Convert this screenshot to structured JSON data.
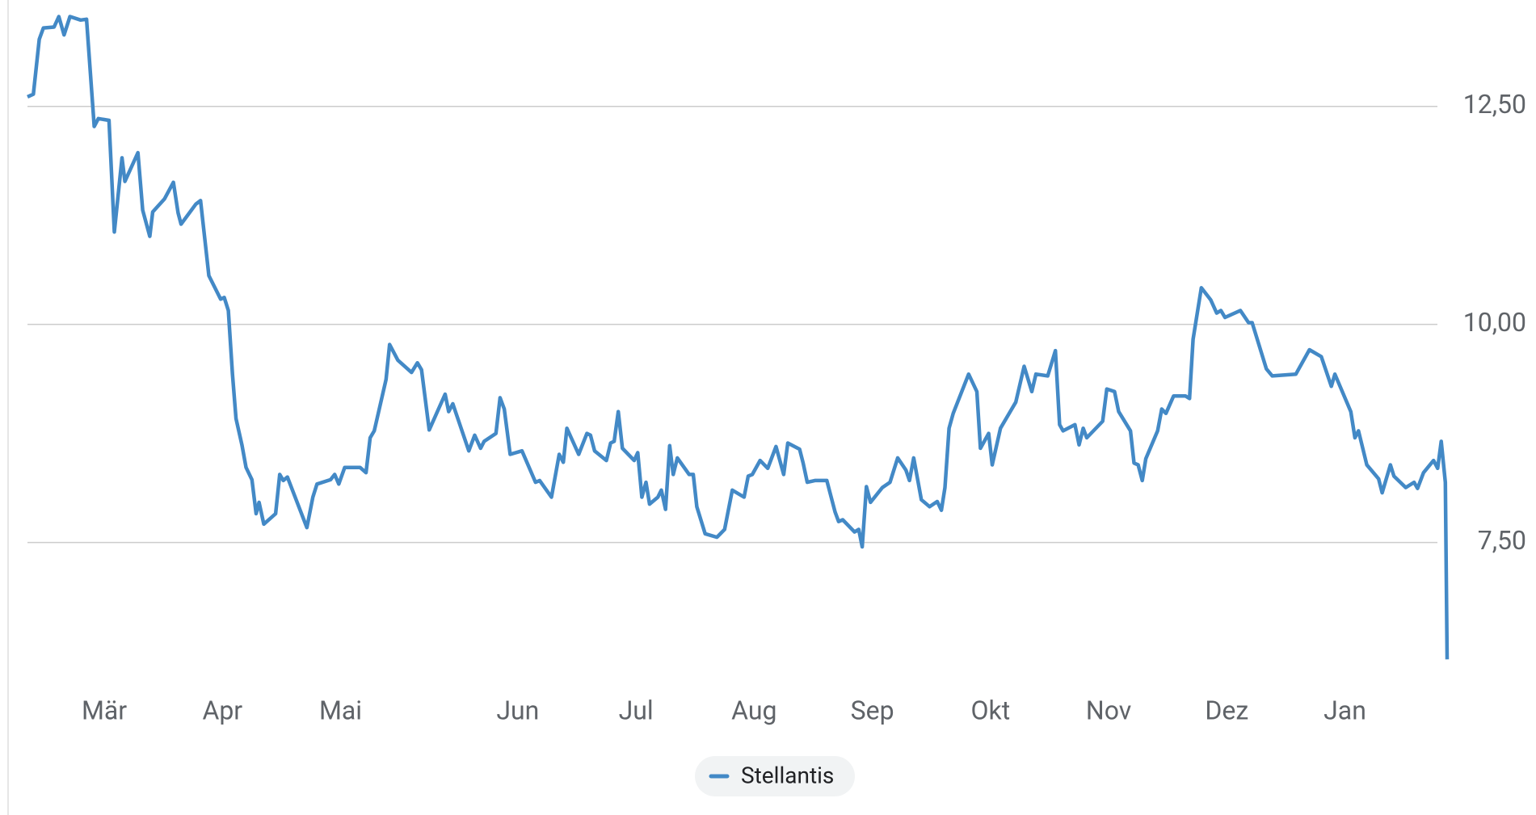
{
  "chart_data": {
    "type": "line",
    "x": [
      0,
      1,
      2,
      2.7,
      4.5,
      5.3,
      6.2,
      7.2,
      9,
      10,
      11.3,
      12,
      13.8,
      14.7,
      16,
      16.5,
      18.7,
      19.5,
      20.7,
      21.2,
      23.2,
      24.7,
      25.5,
      26,
      28.5,
      29.3,
      30.7,
      32.7,
      33.3,
      34,
      34.7,
      35.3,
      36.3,
      37,
      38,
      38.7,
      39.2,
      40,
      42,
      42.7,
      43.3,
      44,
      47.3,
      48.3,
      49,
      51.3,
      52,
      52.7,
      53.7,
      56.3,
      57.3,
      58,
      58.7,
      60.7,
      61.3,
      62.7,
      65,
      66,
      66.7,
      68,
      70.7,
      71.3,
      72,
      74.7,
      75.7,
      76.7,
      77.3,
      79.3,
      80,
      80.7,
      81.7,
      83.7,
      86,
      86.7,
      88.7,
      90,
      90.7,
      91.3,
      93.3,
      94.7,
      95.3,
      96,
      98,
      98.7,
      99.3,
      100,
      100.7,
      102.7,
      103.3,
      104,
      104.7,
      105.3,
      106.7,
      107.3,
      108,
      108.7,
      109.3,
      110,
      112,
      112.7,
      113.3,
      114.7,
      116.7,
      118,
      119.3,
      121.3,
      122,
      122.7,
      124,
      125.3,
      126.7,
      128,
      128.7,
      130.7,
      131.3,
      132,
      133.3,
      135.3,
      136.7,
      137.3,
      138,
      140,
      140.7,
      141.3,
      142,
      142.7,
      144.7,
      146,
      147.3,
      148.7,
      149.3,
      150,
      151.3,
      152.7,
      154,
      154.7,
      155.3,
      156,
      156.7,
      159.3,
      160.7,
      161.3,
      162.7,
      163.3,
      164.7,
      167.3,
      168.7,
      170,
      170.7,
      172.7,
      174,
      174.7,
      175.3,
      177.3,
      178,
      178.7,
      179.3,
      182,
      182.7,
      184,
      184.7,
      186.7,
      187.3,
      188,
      188.7,
      189.3,
      191.3,
      192,
      192.7,
      194,
      196,
      196.7,
      197.3,
      198.7,
      200.3,
      201.3,
      202,
      202.7,
      205.3,
      206.7,
      207.3,
      209.7,
      210.7,
      214.7,
      217,
      219,
      220.7,
      221.3,
      224,
      224.7,
      225.3,
      226.7,
      228.7,
      229.3,
      230.7,
      231.3,
      233.3,
      234.7,
      235.3,
      236.3,
      238,
      238.7,
      239.3,
      240,
      240.3
    ],
    "series": [
      {
        "name": "Stellantis",
        "color": "#4389c6",
        "values": [
          12.61,
          12.64,
          13.27,
          13.4,
          13.41,
          13.53,
          13.32,
          13.53,
          13.49,
          13.5,
          12.27,
          12.36,
          12.34,
          11.06,
          11.91,
          11.64,
          11.97,
          11.31,
          11.01,
          11.29,
          11.44,
          11.63,
          11.28,
          11.15,
          11.38,
          11.42,
          10.56,
          10.29,
          10.31,
          10.16,
          9.43,
          8.92,
          8.62,
          8.36,
          8.22,
          7.83,
          7.96,
          7.71,
          7.83,
          8.28,
          8.21,
          8.25,
          7.67,
          8.02,
          8.17,
          8.22,
          8.28,
          8.17,
          8.36,
          8.36,
          8.3,
          8.7,
          8.78,
          9.37,
          9.77,
          9.59,
          9.45,
          9.56,
          9.48,
          8.79,
          9.2,
          9.0,
          9.09,
          8.55,
          8.73,
          8.58,
          8.66,
          8.75,
          9.16,
          9.03,
          8.51,
          8.55,
          8.19,
          8.21,
          8.02,
          8.51,
          8.42,
          8.81,
          8.51,
          8.75,
          8.73,
          8.55,
          8.44,
          8.64,
          8.66,
          9.0,
          8.58,
          8.44,
          8.53,
          8.02,
          8.19,
          7.94,
          8.02,
          8.1,
          7.88,
          8.61,
          8.28,
          8.47,
          8.28,
          8.28,
          7.91,
          7.6,
          7.56,
          7.65,
          8.1,
          8.02,
          8.26,
          8.28,
          8.44,
          8.35,
          8.6,
          8.28,
          8.64,
          8.57,
          8.41,
          8.19,
          8.21,
          8.21,
          7.85,
          7.74,
          7.76,
          7.62,
          7.65,
          7.45,
          8.14,
          7.96,
          8.13,
          8.19,
          8.47,
          8.33,
          8.21,
          8.47,
          7.99,
          7.91,
          7.97,
          7.87,
          8.13,
          8.81,
          8.98,
          9.43,
          9.23,
          8.58,
          8.75,
          8.39,
          8.81,
          9.11,
          9.52,
          9.23,
          9.43,
          9.41,
          9.7,
          8.85,
          8.78,
          8.85,
          8.62,
          8.81,
          8.7,
          8.89,
          9.26,
          9.23,
          9.0,
          8.78,
          8.41,
          8.39,
          8.21,
          8.46,
          8.78,
          9.03,
          8.98,
          9.18,
          9.18,
          9.15,
          9.83,
          10.42,
          10.28,
          10.13,
          10.16,
          10.08,
          10.16,
          10.02,
          10.02,
          9.49,
          9.41,
          9.43,
          9.71,
          9.63,
          9.29,
          9.43,
          9.0,
          8.7,
          8.78,
          8.39,
          8.23,
          8.07,
          8.39,
          8.26,
          8.13,
          8.19,
          8.12,
          8.3,
          8.44,
          8.35,
          8.66,
          8.19,
          6.16
        ]
      }
    ],
    "xlim": [
      0,
      240.3
    ],
    "xticks": [
      {
        "value": 13,
        "label": "Mär"
      },
      {
        "value": 33,
        "label": "Apr"
      },
      {
        "value": 53,
        "label": "Mai"
      },
      {
        "value": 83,
        "label": "Jun"
      },
      {
        "value": 103,
        "label": "Jul"
      },
      {
        "value": 123,
        "label": "Aug"
      },
      {
        "value": 143,
        "label": "Sep"
      },
      {
        "value": 163,
        "label": "Okt"
      },
      {
        "value": 183,
        "label": "Nov"
      },
      {
        "value": 203,
        "label": "Dez"
      },
      {
        "value": 223,
        "label": "Jan"
      }
    ],
    "ylim": [
      5.82,
      13.72
    ],
    "yticks": [
      {
        "value": 7.5,
        "label": "7,50"
      },
      {
        "value": 10,
        "label": "10,00"
      },
      {
        "value": 12.5,
        "label": "12,50"
      }
    ],
    "grid": true
  }
}
